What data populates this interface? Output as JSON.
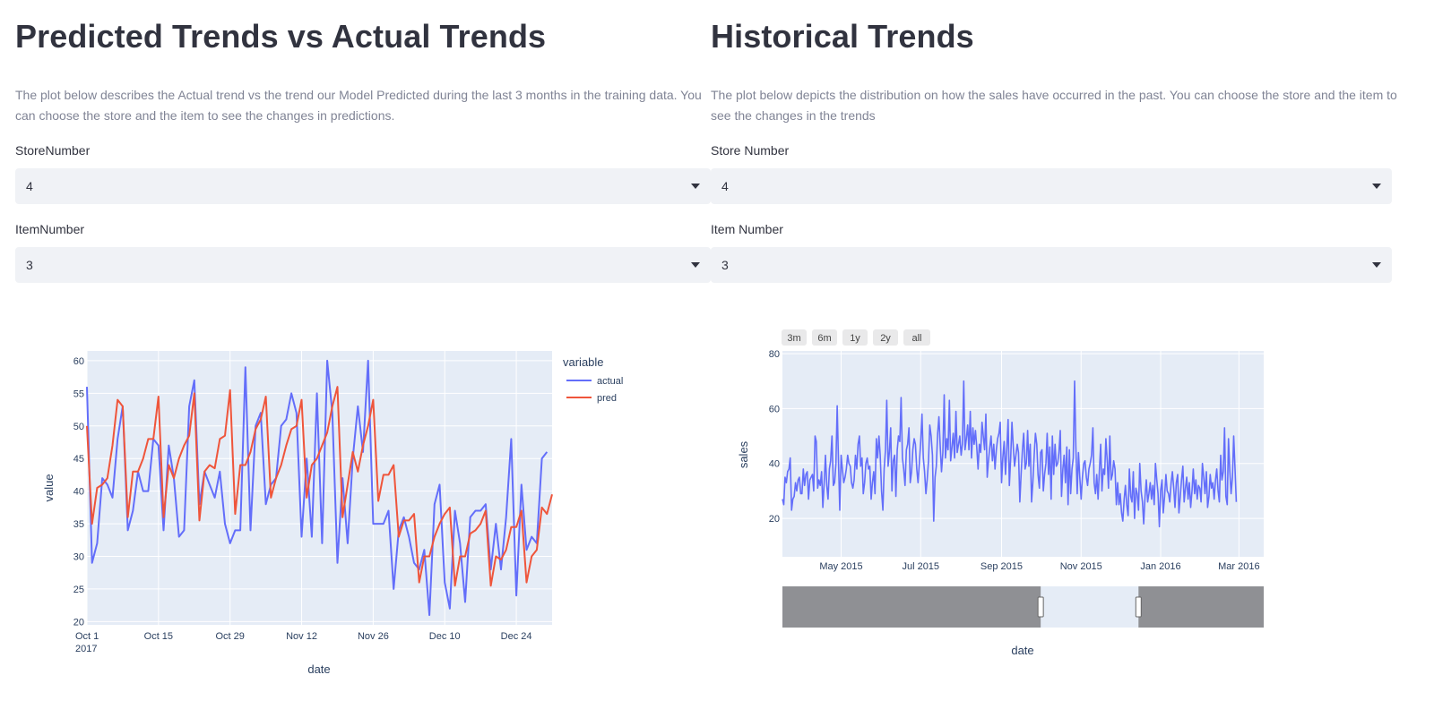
{
  "left": {
    "title": "Predicted Trends vs Actual Trends",
    "description": "The plot below describes the Actual trend vs the trend our Model Predicted during the last 3 months in the training data. You can choose the store and the item to see the changes in predictions.",
    "store_label": "StoreNumber",
    "store_value": "4",
    "item_label": "ItemNumber",
    "item_value": "3"
  },
  "right": {
    "title": "Historical Trends",
    "description": "The plot below depicts the distribution on how the sales have occurred in the past. You can choose the store and the item to see the changes in the trends",
    "store_label": "Store Number",
    "store_value": "4",
    "item_label": "Item Number",
    "item_value": "3"
  },
  "colors": {
    "actual": "#636efa",
    "pred": "#ef553b",
    "plot_bg": "#e5ecf6",
    "select_bg": "#f0f2f6",
    "rangeslider_shade": "#8f9094"
  },
  "chart_data": [
    {
      "type": "line",
      "xlabel": "date",
      "ylabel": "value",
      "legend_title": "variable",
      "legend_position": "right",
      "x_ticks": [
        "Oct 1",
        "Oct 15",
        "Oct 29",
        "Nov 12",
        "Nov 26",
        "Dec 10",
        "Dec 24"
      ],
      "x_tick_year": "2017",
      "x_range": [
        "2017-10-01",
        "2017-12-31"
      ],
      "y_ticks": [
        20,
        25,
        30,
        35,
        40,
        45,
        50,
        55,
        60
      ],
      "ylim": [
        19.5,
        61.5
      ],
      "grid": true,
      "series": [
        {
          "name": "actual",
          "start_date": "2017-10-01",
          "values": [
            56,
            29,
            32,
            42,
            41,
            39,
            48,
            53,
            34,
            37,
            43,
            40,
            40,
            48,
            47,
            34,
            47,
            42,
            33,
            34,
            53,
            57,
            38,
            43,
            41,
            39,
            43,
            35,
            32,
            34,
            34,
            59,
            34,
            50,
            52,
            38,
            41,
            42,
            50,
            51,
            55,
            52,
            33,
            45,
            33,
            55,
            32,
            60,
            52,
            29,
            42,
            32,
            45,
            53,
            46,
            60,
            35,
            35,
            35,
            37,
            25,
            34,
            36,
            33,
            29,
            28,
            31,
            21,
            38,
            41,
            26,
            22,
            37,
            32,
            23,
            36,
            37,
            37,
            38,
            28,
            35,
            28,
            36,
            48,
            24,
            41,
            31,
            33,
            32,
            45,
            46
          ]
        },
        {
          "name": "pred",
          "start_date": "2017-10-01",
          "values": [
            50,
            35,
            40.5,
            41,
            42,
            47,
            54,
            53,
            36,
            43,
            43,
            45,
            48,
            48,
            54.5,
            36,
            44,
            42,
            45,
            47,
            48.5,
            55,
            35.5,
            43,
            44,
            43.5,
            48,
            48.5,
            55.5,
            36.5,
            44,
            44,
            46,
            49.5,
            51,
            54.5,
            39,
            42,
            44,
            47,
            49.5,
            50,
            54,
            39,
            44,
            45,
            47,
            49,
            53,
            56,
            36,
            41,
            46,
            43,
            47,
            50,
            54,
            38.5,
            42.5,
            42.5,
            44,
            33,
            35.5,
            35.5,
            36.5,
            26,
            30,
            30,
            33,
            35,
            36.5,
            37.5,
            25.5,
            30,
            30,
            33.5,
            34,
            35,
            37,
            25.5,
            30,
            29.5,
            31,
            34.5,
            34.5,
            37,
            26,
            30,
            31,
            37.5,
            36.5,
            39.5
          ]
        }
      ]
    },
    {
      "type": "line",
      "xlabel": "date",
      "ylabel": "sales",
      "x_ticks": [
        "May 2015",
        "Jul 2015",
        "Sep 2015",
        "Nov 2015",
        "Jan 2016",
        "Mar 2016"
      ],
      "x_range": [
        "2015-03-17",
        "2016-03-20"
      ],
      "y_ticks": [
        20,
        40,
        60,
        80
      ],
      "ylim": [
        6,
        81
      ],
      "grid": true,
      "range_selector": [
        "3m",
        "6m",
        "1y",
        "2y",
        "all"
      ],
      "range_slider_window": [
        "2015-10-01",
        "2015-12-15"
      ],
      "series": [
        {
          "name": "sales",
          "start_date": "2015-03-17",
          "values": [
            27,
            25,
            35,
            33,
            37,
            38,
            42,
            23,
            27,
            28,
            33,
            30,
            34,
            35,
            29,
            29,
            38,
            32,
            36,
            37,
            27,
            34,
            35,
            36,
            30,
            50,
            48,
            31,
            34,
            32,
            37,
            24,
            33,
            43,
            32,
            27,
            38,
            41,
            50,
            32,
            33,
            40,
            61,
            40,
            23,
            43,
            38,
            33,
            35,
            38,
            43,
            40,
            39,
            33,
            31,
            34,
            43,
            38,
            47,
            50,
            39,
            42,
            29,
            33,
            40,
            42,
            38,
            39,
            27,
            33,
            37,
            29,
            49,
            42,
            50,
            43,
            30,
            23,
            38,
            45,
            63,
            39,
            44,
            53,
            30,
            41,
            43,
            28,
            45,
            50,
            48,
            64,
            42,
            38,
            32,
            45,
            47,
            53,
            33,
            37,
            45,
            49,
            47,
            38,
            33,
            40,
            48,
            58,
            42,
            37,
            29,
            34,
            41,
            54,
            50,
            43,
            19,
            35,
            39,
            51,
            57,
            46,
            37,
            44,
            65,
            42,
            49,
            45,
            63,
            41,
            46,
            51,
            42,
            59,
            44,
            47,
            50,
            43,
            47,
            70,
            45,
            49,
            54,
            45,
            59,
            42,
            53,
            47,
            52,
            46,
            38,
            47,
            44,
            55,
            50,
            45,
            58,
            35,
            41,
            46,
            50,
            41,
            47,
            38,
            45,
            49,
            51,
            55,
            33,
            42,
            48,
            36,
            45,
            56,
            32,
            42,
            55,
            46,
            39,
            43,
            47,
            44,
            26,
            36,
            45,
            51,
            38,
            40,
            52,
            39,
            47,
            26,
            33,
            43,
            51,
            47,
            36,
            31,
            44,
            45,
            30,
            36,
            40,
            51,
            36,
            46,
            27,
            50,
            36,
            47,
            39,
            40,
            44,
            52,
            28,
            38,
            43,
            33,
            46,
            25,
            45,
            29,
            38,
            42,
            70,
            46,
            29,
            44,
            35,
            27,
            35,
            40,
            41,
            35,
            32,
            38,
            40,
            43,
            53,
            33,
            29,
            36,
            27,
            37,
            47,
            30,
            38,
            36,
            49,
            41,
            31,
            50,
            34,
            36,
            41,
            38,
            25,
            33,
            25,
            29,
            22,
            19,
            27,
            32,
            25,
            21,
            38,
            28,
            26,
            37,
            20,
            31,
            29,
            23,
            40,
            30,
            26,
            18,
            28,
            34,
            26,
            29,
            33,
            27,
            32,
            25,
            40,
            34,
            29,
            17,
            30,
            34,
            22,
            28,
            36,
            30,
            29,
            26,
            33,
            37,
            31,
            24,
            33,
            36,
            22,
            28,
            34,
            39,
            26,
            31,
            35,
            27,
            33,
            24,
            30,
            38,
            29,
            34,
            27,
            32,
            31,
            26,
            40,
            35,
            29,
            37,
            24,
            28,
            36,
            31,
            33,
            27,
            34,
            38,
            30,
            26,
            43,
            34,
            37,
            53,
            28,
            25,
            49,
            37,
            29,
            35,
            50,
            38,
            26
          ]
        }
      ]
    }
  ]
}
